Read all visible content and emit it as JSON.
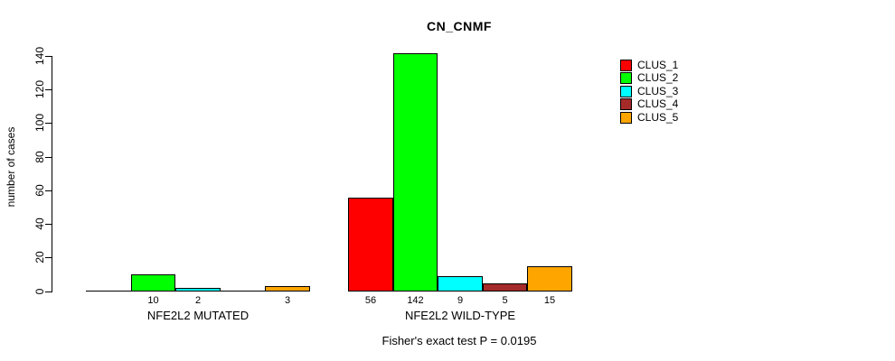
{
  "chart_data": {
    "type": "bar",
    "title": "CN_CNMF",
    "ylabel": "number of cases",
    "xlabel": "",
    "ylim": [
      0,
      140
    ],
    "yticks": [
      0,
      20,
      40,
      60,
      80,
      100,
      120,
      140
    ],
    "categories": [
      "NFE2L2 MUTATED",
      "NFE2L2 WILD-TYPE"
    ],
    "series": [
      {
        "name": "CLUS_1",
        "color": "#ff0000",
        "values": [
          0,
          56
        ]
      },
      {
        "name": "CLUS_2",
        "color": "#00ff00",
        "values": [
          10,
          142
        ]
      },
      {
        "name": "CLUS_3",
        "color": "#00ffff",
        "values": [
          2,
          9
        ]
      },
      {
        "name": "CLUS_4",
        "color": "#a52a2a",
        "values": [
          0,
          5
        ]
      },
      {
        "name": "CLUS_5",
        "color": "#ffa500",
        "values": [
          3,
          15
        ]
      }
    ],
    "bar_value_labels": {
      "NFE2L2 MUTATED": [
        null,
        10,
        2,
        null,
        3
      ],
      "NFE2L2 WILD-TYPE": [
        56,
        142,
        9,
        5,
        15
      ]
    },
    "legend_position": "right",
    "grid": false,
    "annotation": "Fisher's exact test P = 0.0195"
  }
}
